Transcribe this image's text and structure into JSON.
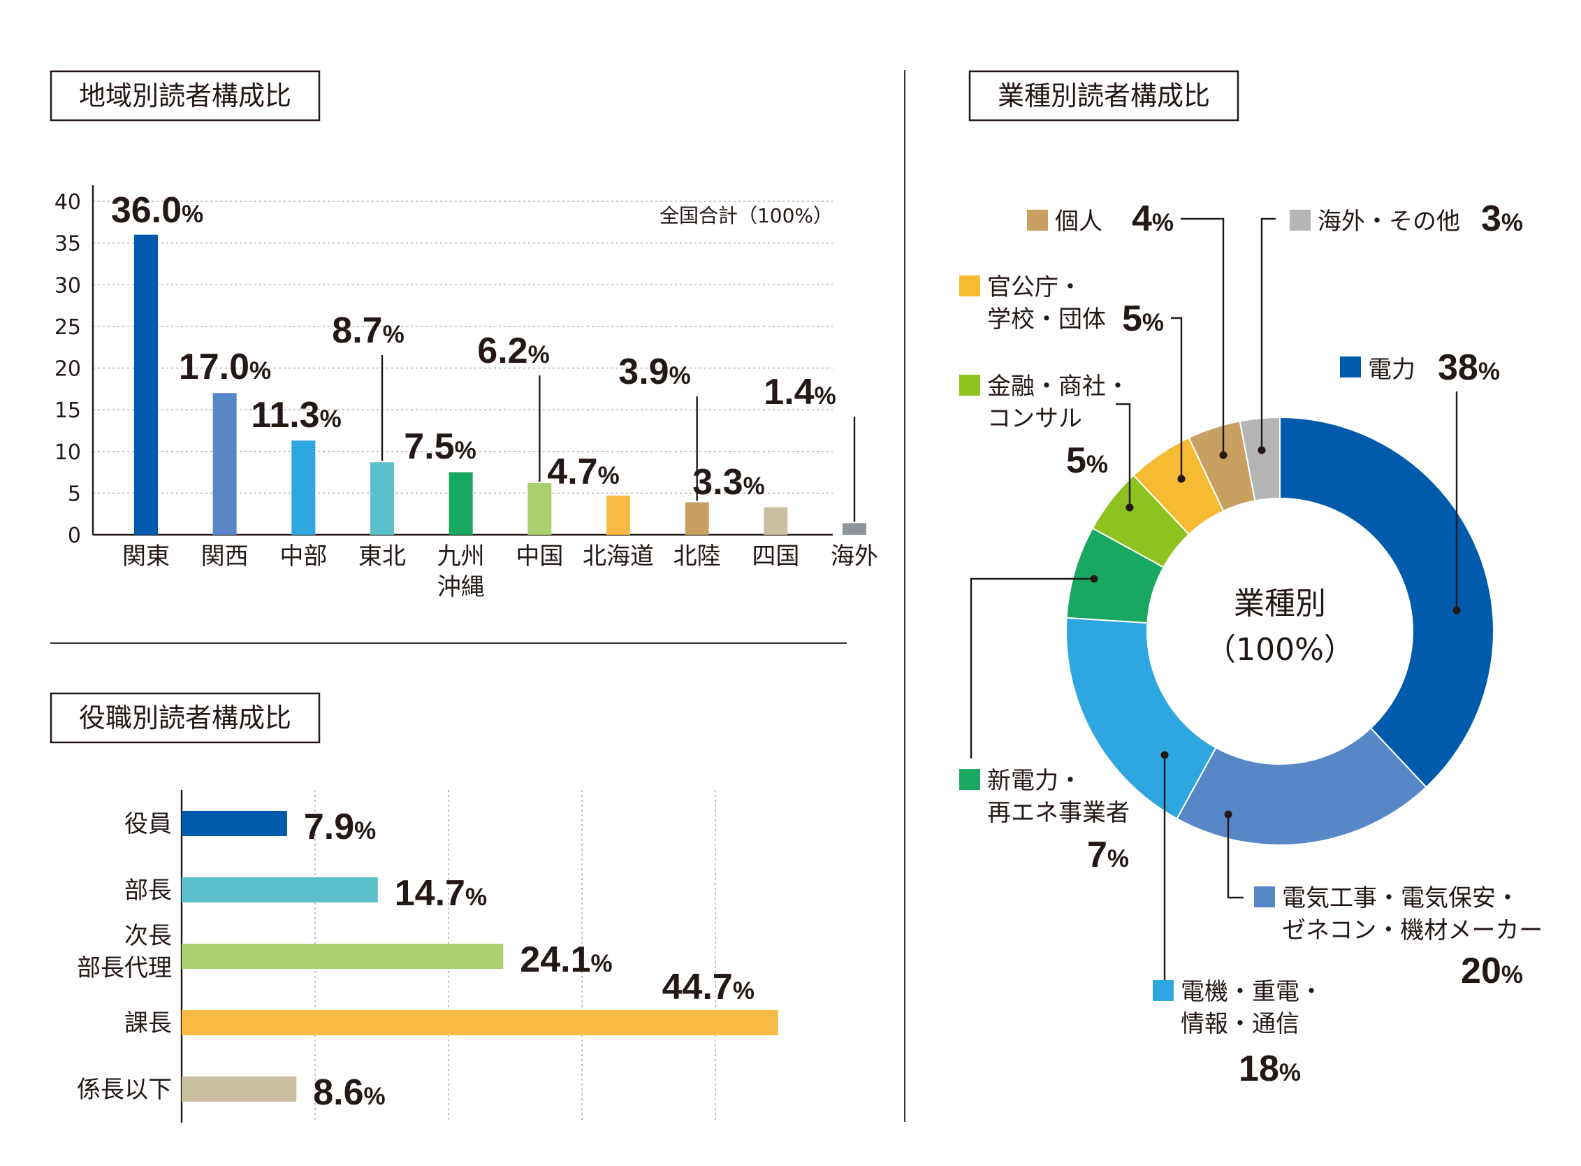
{
  "chart_data": [
    {
      "type": "bar",
      "title": "地域別読者構成比",
      "note": "全国合計（100%）",
      "categories": [
        "関東",
        "関西",
        "中部",
        "東北",
        "九州\n沖縄",
        "中国",
        "北海道",
        "北陸",
        "四国",
        "海外"
      ],
      "values": [
        36.0,
        17.0,
        11.3,
        8.7,
        7.5,
        6.2,
        4.7,
        3.9,
        3.3,
        1.4
      ],
      "value_labels": [
        "36.0",
        "17.0",
        "11.3",
        "8.7",
        "7.5",
        "6.2",
        "4.7",
        "3.9",
        "3.3",
        "1.4"
      ],
      "unit": "%",
      "colors": [
        "#005bac",
        "#5887c7",
        "#2ea7e0",
        "#5cbfcc",
        "#19a85f",
        "#a9d06f",
        "#f7bb45",
        "#c8a062",
        "#c9bfa0",
        "#8d969c"
      ],
      "yticks": [
        "0",
        "5",
        "10",
        "15",
        "20",
        "25",
        "30",
        "35",
        "40"
      ],
      "ylim": [
        0,
        40
      ],
      "grid": true
    },
    {
      "type": "bar",
      "orientation": "horizontal",
      "title": "役職別読者構成比",
      "categories": [
        "役員",
        "部長",
        "次長\n部長代理",
        "課長",
        "係長以下"
      ],
      "values": [
        7.9,
        14.7,
        24.1,
        44.7,
        8.6
      ],
      "value_labels": [
        "7.9",
        "14.7",
        "24.1",
        "44.7",
        "8.6"
      ],
      "unit": "%",
      "colors": [
        "#005bac",
        "#5cbfcc",
        "#a9d06f",
        "#f7bb45",
        "#c9bfa0"
      ],
      "xlim": [
        0,
        50
      ],
      "grid": true
    },
    {
      "type": "pie",
      "donut": true,
      "title": "業種別読者構成比",
      "center_label": [
        "業種別",
        "（100%）"
      ],
      "categories": [
        "電力",
        "電気工事・電気保安・ゼネコン・機材メーカー",
        "電機・重電・情報・通信",
        "新電力・再エネ事業者",
        "金融・商社・コンサル",
        "官公庁・学校・団体",
        "個人",
        "海外・その他"
      ],
      "label_lines": [
        [
          "電力"
        ],
        [
          "電気工事・電気保安・",
          "ゼネコン・機材メーカー"
        ],
        [
          "電機・重電・",
          "情報・通信"
        ],
        [
          "新電力・",
          "再エネ事業者"
        ],
        [
          "金融・商社・",
          "コンサル"
        ],
        [
          "官公庁・",
          "学校・団体"
        ],
        [
          "個人"
        ],
        [
          "海外・その他"
        ]
      ],
      "values": [
        38,
        20,
        18,
        7,
        5,
        5,
        4,
        3
      ],
      "value_labels": [
        "38",
        "20",
        "18",
        "7",
        "5",
        "5",
        "4",
        "3"
      ],
      "unit": "%",
      "colors": [
        "#005bac",
        "#5887c7",
        "#2ea7e0",
        "#19a85f",
        "#8dc21f",
        "#f7bb33",
        "#c8a062",
        "#b5b5b6"
      ]
    }
  ]
}
